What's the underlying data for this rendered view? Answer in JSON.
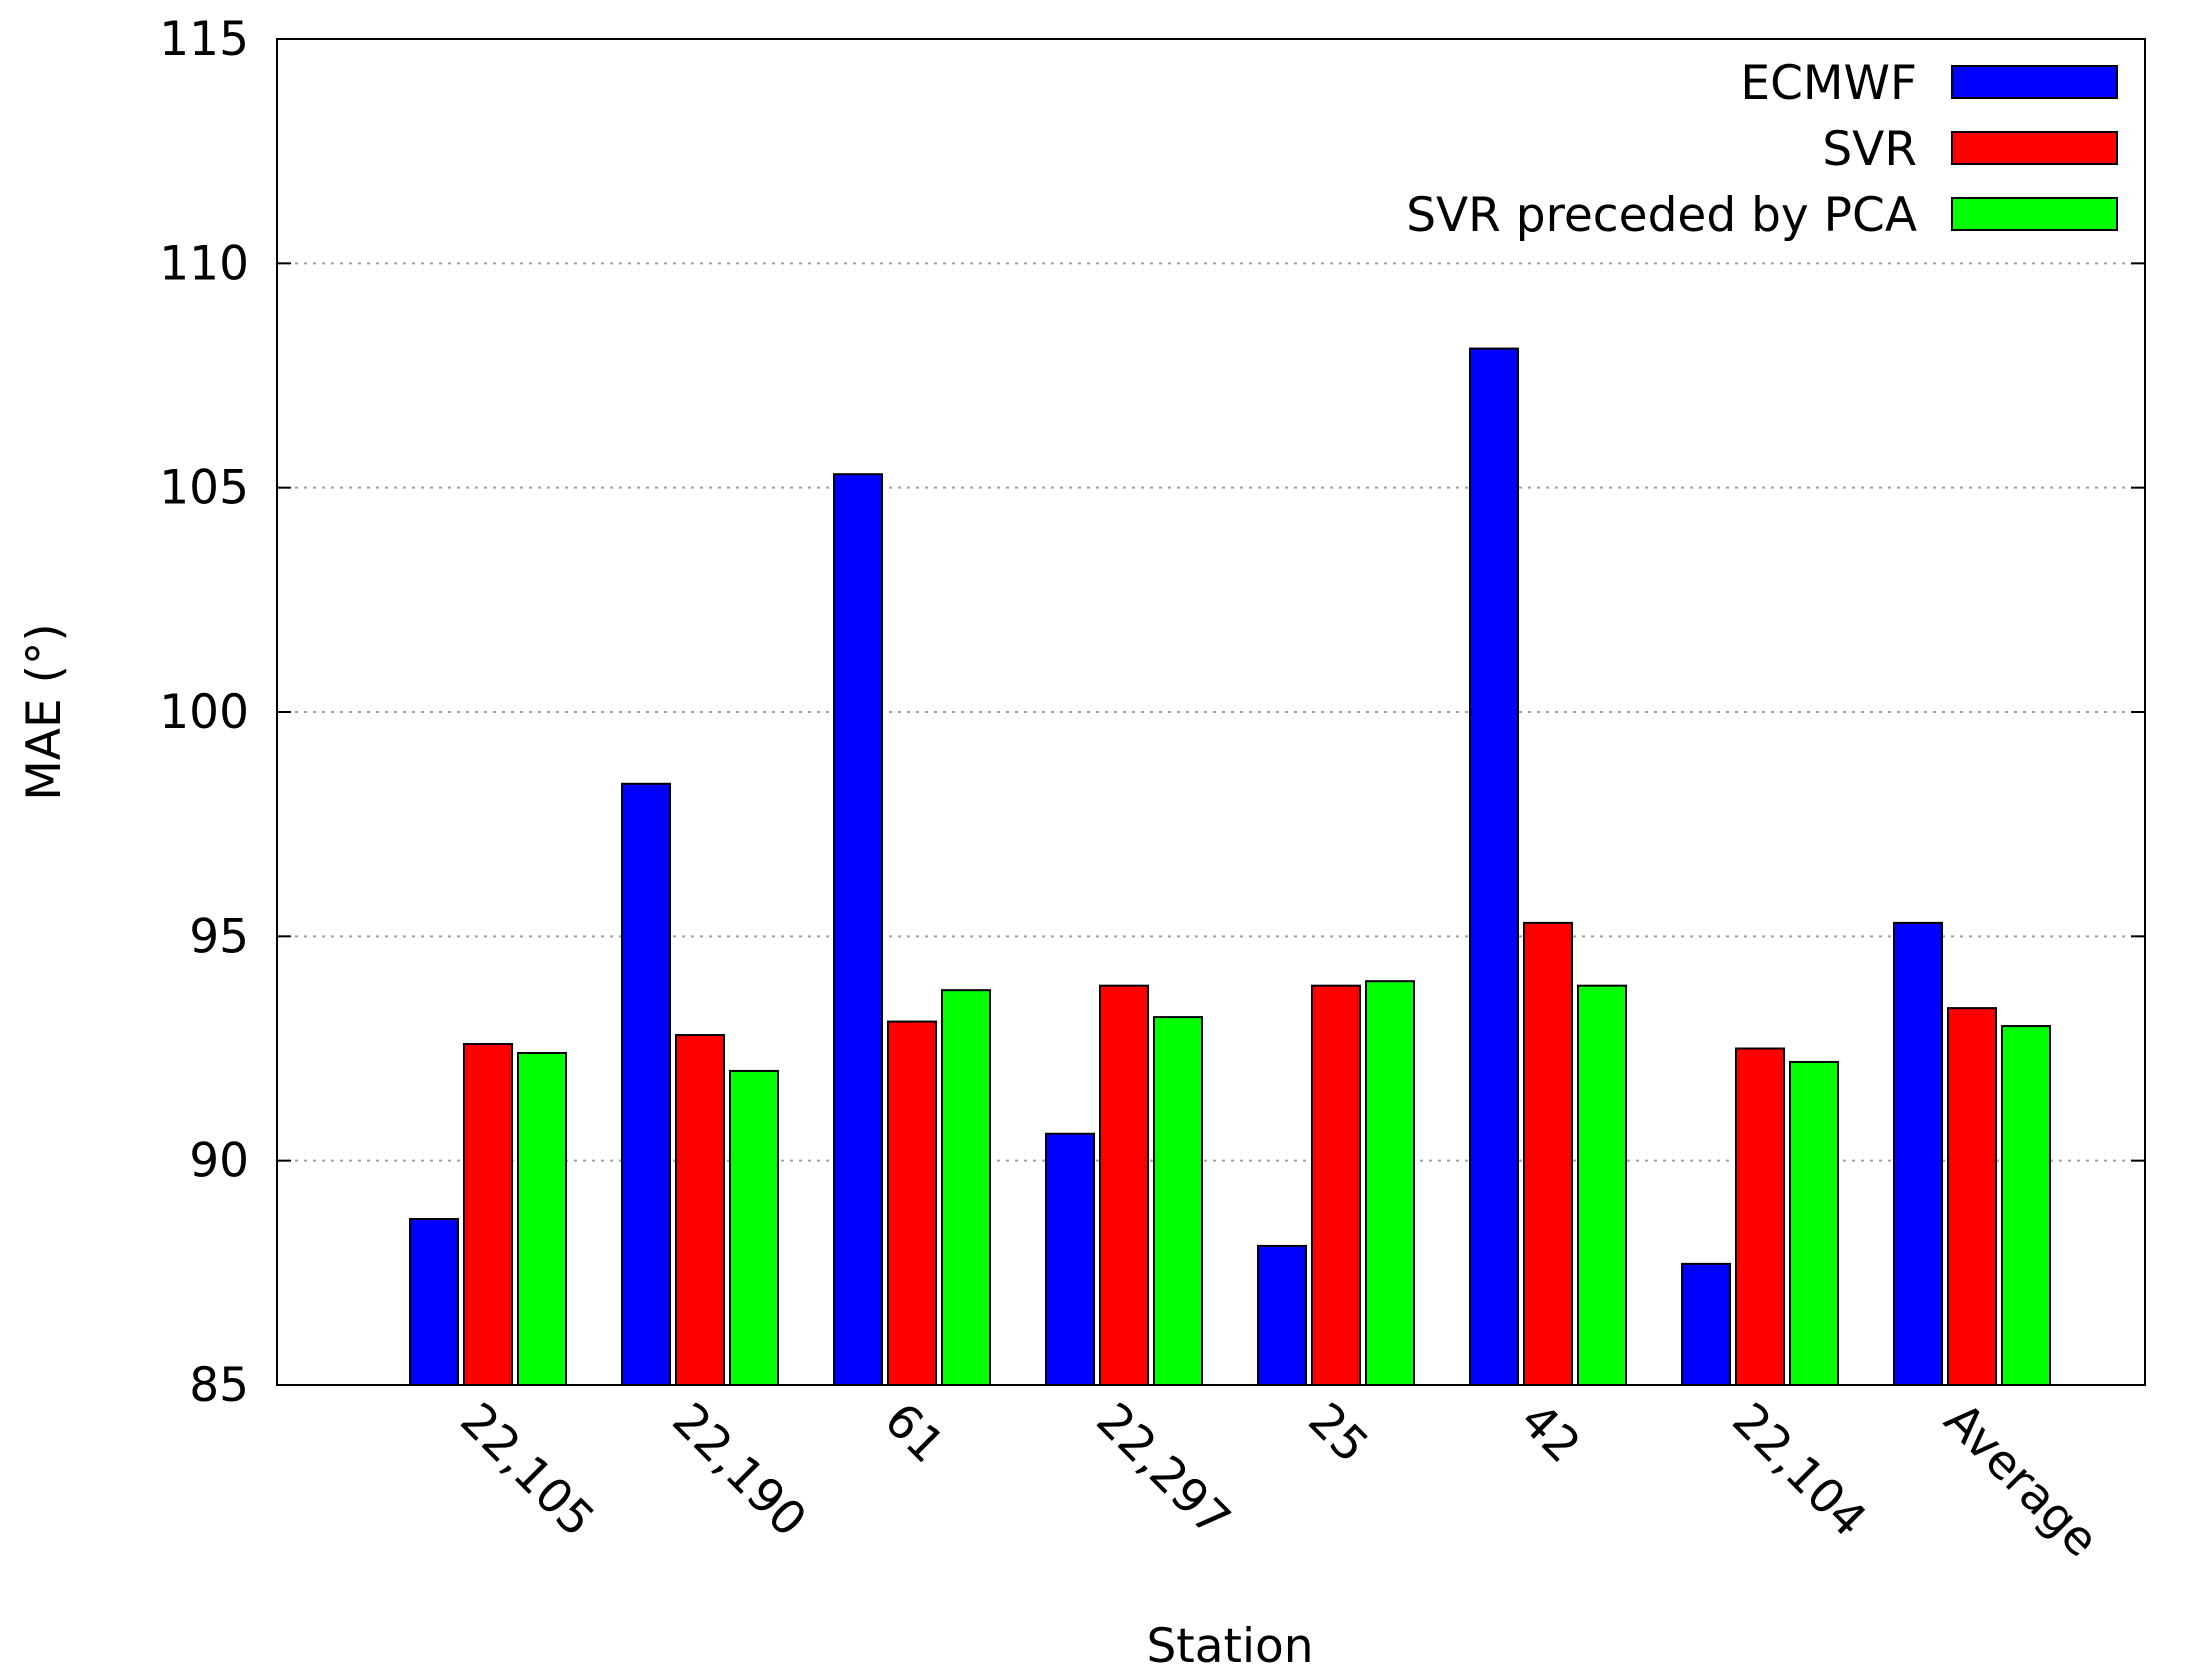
{
  "chart_data": {
    "type": "bar",
    "title": "",
    "xlabel": "Station",
    "ylabel": "MAE (°)",
    "ylim": [
      85,
      115
    ],
    "yticks": [
      85,
      90,
      95,
      100,
      105,
      110,
      115
    ],
    "grid": true,
    "legend_position": "top-right",
    "categories": [
      "22,105",
      "22,190",
      "61",
      "22,297",
      "25",
      "42",
      "22,104",
      "Average"
    ],
    "series": [
      {
        "name": "ECMWF",
        "color": "#0000ff",
        "values": [
          88.7,
          98.4,
          105.3,
          90.6,
          88.1,
          108.1,
          87.7,
          95.3
        ]
      },
      {
        "name": "SVR",
        "color": "#ff0000",
        "values": [
          92.6,
          92.8,
          93.1,
          93.9,
          93.9,
          95.3,
          92.5,
          93.4
        ]
      },
      {
        "name": "SVR preceded by PCA",
        "color": "#00ff00",
        "values": [
          92.4,
          92.0,
          93.8,
          93.2,
          94.0,
          93.9,
          92.2,
          93.0
        ]
      }
    ]
  }
}
